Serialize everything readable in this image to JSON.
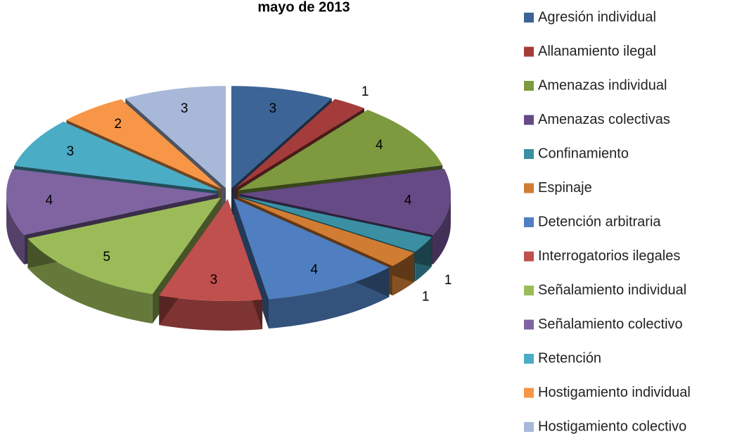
{
  "chart_data": {
    "type": "pie",
    "title": "mayo de 2013",
    "categories": [
      "Agresión individual",
      "Allanamiento ilegal",
      "Amenazas individual",
      "Amenazas colectivas",
      "Confinamiento",
      "Espinaje",
      "Detención arbitraria",
      "Interrogatorios ilegales",
      "Señalamiento individual",
      "Señalamiento colectivo",
      "Retención",
      "Hostigamiento individual",
      "Hostigamiento colectivo"
    ],
    "values": [
      3,
      1,
      4,
      4,
      1,
      1,
      4,
      3,
      5,
      4,
      3,
      2,
      3
    ],
    "colors": [
      "#3c6496",
      "#a33c3a",
      "#7d9a3e",
      "#654a85",
      "#3a8fa3",
      "#d07c33",
      "#4f7fc0",
      "#c0504d",
      "#9bbb59",
      "#8064a2",
      "#4bacc6",
      "#f79646",
      "#a8b8d8"
    ],
    "legend": "right"
  }
}
